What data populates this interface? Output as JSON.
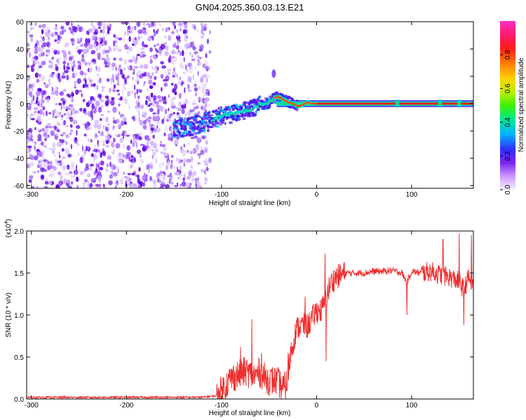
{
  "title": "GN04.2025.360.03.13.E21",
  "chart_data": [
    {
      "type": "heatmap",
      "xlabel": "Height of straight line (km)",
      "ylabel": "Frequency (Hz)",
      "xlim": [
        -305,
        165
      ],
      "ylim": [
        -62,
        60
      ],
      "xticks": [
        -300,
        -200,
        -100,
        0,
        100
      ],
      "yticks": [
        -60,
        -40,
        -20,
        0,
        20,
        40,
        60
      ],
      "colorbar": {
        "label": "Normalized spectral amplitude",
        "range": [
          0,
          1
        ],
        "ticks": [
          0.0,
          0.2,
          0.4,
          0.6,
          0.8
        ],
        "colors": [
          "#f0f0ff",
          "#cc99ff",
          "#7a22f0",
          "#3030ff",
          "#00b4ff",
          "#00e890",
          "#40f000",
          "#c0f000",
          "#ffd000",
          "#ff7a00",
          "#ff1a1a",
          "#ff1a70",
          "#ff30c0"
        ]
      },
      "noise_region": {
        "x": [
          -305,
          -112
        ],
        "y": [
          -62,
          60
        ]
      },
      "ridge": {
        "x": [
          -150,
          -130,
          -110,
          -100,
          -90,
          -80,
          -70,
          -60,
          -50,
          -45,
          -40,
          -35,
          -30,
          -25,
          -20,
          -15,
          -10,
          -5,
          0,
          20,
          50,
          80,
          85,
          90,
          110,
          130,
          150,
          165
        ],
        "y": [
          -18,
          -16,
          -12,
          -9,
          -8,
          -6,
          -4,
          -1,
          1,
          4,
          5,
          3,
          1,
          0,
          -2,
          -1,
          1,
          0,
          0,
          0,
          0,
          0,
          0,
          0,
          0,
          0,
          0,
          0
        ]
      },
      "blob": {
        "x": -45,
        "y": 22
      }
    },
    {
      "type": "line",
      "xlabel": "Height of straight line (km)",
      "ylabel": "SNR (10 * v/v)",
      "multiplier": "(x10",
      "multiplier_exp": "4",
      "multiplier_close": ")",
      "xlim": [
        -305,
        165
      ],
      "ylim": [
        0,
        2.0
      ],
      "xticks": [
        -300,
        -200,
        -100,
        0,
        100
      ],
      "yticks": [
        "0.0",
        "0.5",
        "1.0",
        "1.5",
        "2.0"
      ],
      "line_color": "#ee3030",
      "series": [
        {
          "envelope": {
            "x": [
              -305,
              -120,
              -105,
              -100,
              -90,
              -80,
              -75,
              -70,
              -65,
              -60,
              -55,
              -50,
              -45,
              -40,
              -35,
              -30,
              -28,
              -25,
              -22,
              -20,
              -15,
              -10,
              -5,
              0,
              5,
              10,
              15,
              20,
              25,
              30,
              40,
              50,
              60,
              70,
              80,
              90,
              95,
              100,
              110,
              120,
              130,
              140,
              150,
              155,
              160,
              165
            ],
            "y": [
              0.02,
              0.02,
              0.04,
              0.1,
              0.25,
              0.3,
              0.33,
              0.3,
              0.27,
              0.32,
              0.26,
              0.22,
              0.22,
              0.2,
              0.12,
              0.22,
              0.5,
              0.65,
              0.8,
              0.85,
              0.88,
              0.86,
              0.95,
              1.05,
              1.05,
              1.2,
              1.38,
              1.45,
              1.47,
              1.5,
              1.5,
              1.5,
              1.52,
              1.52,
              1.53,
              1.5,
              1.38,
              1.52,
              1.5,
              1.52,
              1.48,
              1.45,
              1.4,
              1.3,
              1.45,
              1.35
            ]
          },
          "spikes": [
            {
              "x": -80,
              "y": 0.62
            },
            {
              "x": -68,
              "y": 0.95
            },
            {
              "x": -58,
              "y": 0.55
            },
            {
              "x": -30,
              "y": 0.55
            },
            {
              "x": -12,
              "y": 1.22
            },
            {
              "x": 9,
              "y": 1.73
            },
            {
              "x": 10,
              "y": 0.45
            },
            {
              "x": 95,
              "y": 1.83
            },
            {
              "x": 95,
              "y": 1.0
            },
            {
              "x": 133,
              "y": 1.9
            },
            {
              "x": 150,
              "y": 1.97
            },
            {
              "x": 155,
              "y": 0.88
            },
            {
              "x": 163,
              "y": 1.95
            },
            {
              "x": 165,
              "y": 0.85
            }
          ]
        }
      ]
    }
  ]
}
